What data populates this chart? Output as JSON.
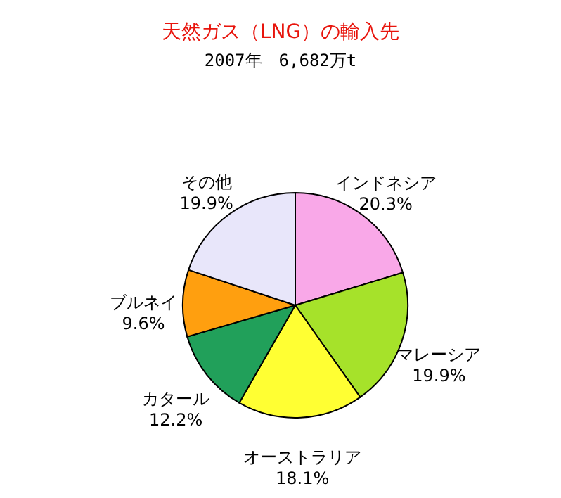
{
  "chart_data": {
    "type": "pie",
    "title": "天然ガス（LNG）の輸入先",
    "subtitle": "2007年　6,682万t",
    "categories": [
      "インドネシア",
      "マレーシア",
      "オーストラリア",
      "カタール",
      "ブルネイ",
      "その他"
    ],
    "values": [
      20.3,
      19.9,
      18.1,
      12.2,
      9.6,
      19.9
    ],
    "value_labels": [
      "20.3%",
      "19.9%",
      "18.1%",
      "12.2%",
      "9.6%",
      "19.9%"
    ],
    "colors": [
      "#f9a8e8",
      "#a6e22a",
      "#ffff33",
      "#21a05a",
      "#ff9f0f",
      "#e8e6fa"
    ]
  }
}
